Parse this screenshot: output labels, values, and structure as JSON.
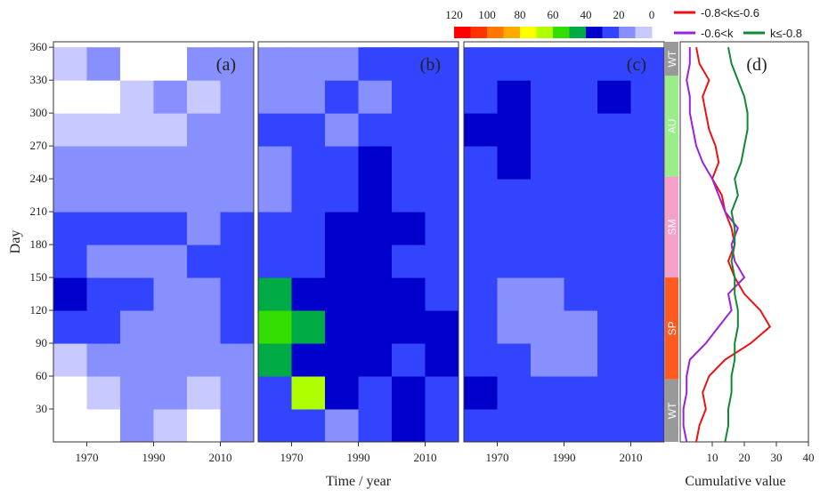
{
  "chart_data": [
    {
      "type": "heatmap",
      "label": "(a)",
      "ylabel": "Day",
      "xlim": [
        1960,
        2020
      ],
      "xticks": [
        1970,
        1990,
        2010
      ],
      "ylim": [
        0,
        365
      ],
      "yticks": [
        30,
        60,
        90,
        120,
        150,
        180,
        210,
        240,
        270,
        300,
        330,
        360
      ],
      "year_edges": [
        1960,
        1970,
        1980,
        1990,
        2000,
        2010,
        2020
      ],
      "day_edges": [
        0,
        30,
        60,
        90,
        120,
        150,
        180,
        210,
        240,
        270,
        300,
        330,
        360
      ],
      "z": [
        [
          0,
          0,
          10,
          5,
          0,
          10
        ],
        [
          0,
          5,
          10,
          10,
          5,
          10
        ],
        [
          5,
          10,
          10,
          10,
          10,
          10
        ],
        [
          20,
          20,
          15,
          10,
          15,
          25
        ],
        [
          30,
          25,
          20,
          15,
          15,
          20
        ],
        [
          20,
          15,
          15,
          15,
          20,
          20
        ],
        [
          25,
          25,
          20,
          20,
          15,
          20
        ],
        [
          10,
          15,
          15,
          10,
          10,
          15
        ],
        [
          10,
          10,
          10,
          10,
          10,
          10
        ],
        [
          5,
          5,
          5,
          5,
          10,
          10
        ],
        [
          0,
          0,
          5,
          10,
          5,
          10
        ],
        [
          5,
          10,
          0,
          0,
          10,
          10
        ]
      ]
    },
    {
      "type": "heatmap",
      "label": "(b)",
      "xlabel": "Time / year",
      "xlim": [
        1960,
        2020
      ],
      "xticks": [
        1970,
        1990,
        2010
      ],
      "ylim": [
        0,
        365
      ],
      "year_edges": [
        1960,
        1970,
        1980,
        1990,
        2000,
        2010,
        2020
      ],
      "day_edges": [
        0,
        30,
        60,
        90,
        120,
        150,
        180,
        210,
        240,
        270,
        300,
        330,
        360
      ],
      "z": [
        [
          20,
          25,
          15,
          20,
          30,
          25
        ],
        [
          25,
          60,
          30,
          25,
          30,
          20
        ],
        [
          45,
          30,
          35,
          30,
          25,
          30
        ],
        [
          50,
          40,
          35,
          35,
          30,
          35
        ],
        [
          40,
          35,
          35,
          30,
          30,
          25
        ],
        [
          25,
          25,
          35,
          30,
          25,
          25
        ],
        [
          20,
          20,
          30,
          35,
          30,
          25
        ],
        [
          15,
          25,
          20,
          30,
          25,
          20
        ],
        [
          15,
          25,
          20,
          30,
          25,
          25
        ],
        [
          20,
          20,
          15,
          25,
          20,
          20
        ],
        [
          10,
          15,
          20,
          15,
          20,
          25
        ],
        [
          10,
          15,
          10,
          20,
          20,
          25
        ]
      ]
    },
    {
      "type": "heatmap",
      "label": "(c)",
      "xlim": [
        1960,
        2020
      ],
      "xticks": [
        1970,
        1990,
        2010
      ],
      "ylim": [
        0,
        365
      ],
      "year_edges": [
        1960,
        1970,
        1980,
        1990,
        2000,
        2010,
        2020
      ],
      "day_edges": [
        0,
        30,
        60,
        90,
        120,
        150,
        180,
        210,
        240,
        270,
        300,
        330,
        360
      ],
      "colorbar": {
        "lim": [
          0,
          120
        ],
        "ticks": [
          120,
          100,
          80,
          60,
          40,
          20,
          0
        ],
        "colors": [
          "#ff0000",
          "#ff3300",
          "#ff7700",
          "#ffaa00",
          "#ffff00",
          "#b0ff00",
          "#33dd00",
          "#00aa44",
          "#0000cc",
          "#3344ff",
          "#8890ff",
          "#c8caff"
        ],
        "zero_color": "#ffffff"
      },
      "z": [
        [
          25,
          20,
          20,
          20,
          20,
          25
        ],
        [
          30,
          20,
          20,
          20,
          25,
          20
        ],
        [
          25,
          20,
          15,
          15,
          20,
          20
        ],
        [
          20,
          15,
          15,
          15,
          20,
          20
        ],
        [
          20,
          15,
          15,
          20,
          20,
          20
        ],
        [
          20,
          20,
          20,
          20,
          25,
          20
        ],
        [
          25,
          20,
          20,
          20,
          25,
          25
        ],
        [
          25,
          25,
          25,
          25,
          20,
          25
        ],
        [
          25,
          30,
          25,
          25,
          25,
          25
        ],
        [
          30,
          30,
          25,
          25,
          25,
          25
        ],
        [
          25,
          30,
          25,
          25,
          30,
          25
        ],
        [
          25,
          25,
          20,
          25,
          20,
          20
        ]
      ]
    },
    {
      "type": "line",
      "label": "(d)",
      "xlabel": "Cumulative value",
      "xlim": [
        0,
        40
      ],
      "xticks": [
        10,
        20,
        30,
        40
      ],
      "ylim": [
        0,
        365
      ],
      "seasons": [
        {
          "label": "WT",
          "start": 0,
          "end": 57,
          "color": "#999999"
        },
        {
          "label": "SP",
          "start": 57,
          "end": 150,
          "color": "#ff5a1f"
        },
        {
          "label": "SM",
          "start": 150,
          "end": 242,
          "color": "#f4a0c8"
        },
        {
          "label": "AU",
          "start": 242,
          "end": 334,
          "color": "#99ee88"
        },
        {
          "label": "WT",
          "start": 334,
          "end": 365,
          "color": "#999999"
        }
      ],
      "days": [
        0,
        15,
        30,
        45,
        60,
        75,
        90,
        105,
        120,
        135,
        150,
        165,
        180,
        195,
        210,
        225,
        240,
        255,
        270,
        285,
        300,
        315,
        330,
        345,
        360
      ],
      "series": [
        {
          "name": "-0.8<k≤-0.6",
          "color": "#ee1111",
          "values": [
            5,
            6,
            8,
            7,
            9,
            14,
            22,
            28,
            25,
            20,
            17,
            15,
            17,
            16,
            14,
            13,
            10,
            12,
            11,
            9,
            8,
            7,
            9,
            6,
            5
          ]
        },
        {
          "name": "-0.6<k",
          "color": "#9922dd",
          "values": [
            2,
            1,
            1,
            2,
            2,
            3,
            8,
            12,
            16,
            15,
            20,
            17,
            16,
            18,
            14,
            12,
            10,
            7,
            5,
            4,
            3,
            3,
            2,
            3,
            3
          ]
        },
        {
          "name": "k≤-0.8",
          "color": "#118833",
          "values": [
            14,
            15,
            15,
            16,
            16,
            17,
            17,
            18,
            18,
            17,
            17,
            16,
            17,
            17,
            16,
            18,
            17,
            19,
            20,
            21,
            21,
            20,
            18,
            16,
            15
          ]
        }
      ]
    }
  ]
}
